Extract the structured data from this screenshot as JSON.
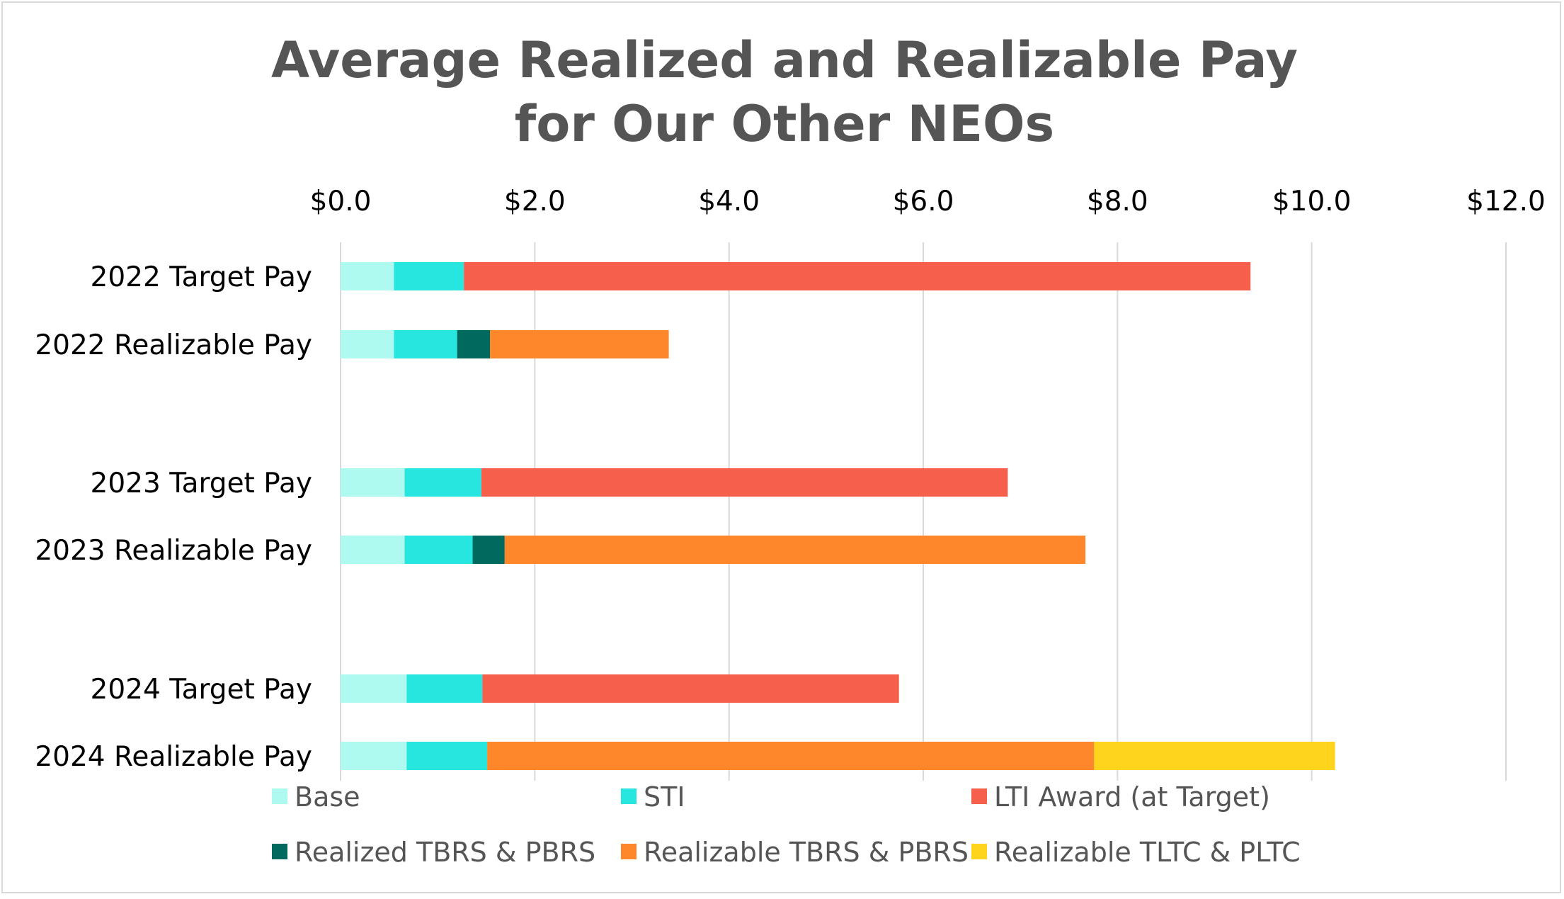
{
  "chart_data": {
    "type": "bar",
    "orientation": "horizontal",
    "stacked": true,
    "title_lines": [
      "Average Realized and Realizable Pay",
      "for Our Other NEOs"
    ],
    "xlabel": "",
    "ylabel": "",
    "xlim": [
      0,
      12
    ],
    "x_ticks": [
      0,
      2,
      4,
      6,
      8,
      10,
      12
    ],
    "x_tick_labels": [
      "$0.0",
      "$2.0",
      "$4.0",
      "$6.0",
      "$8.0",
      "$10.0",
      "$12.0"
    ],
    "x_axis_position": "top",
    "grid": true,
    "legend_position": "bottom",
    "categories": [
      "2022 Target Pay",
      "2022 Realizable Pay",
      "2023 Target Pay",
      "2023 Realizable Pay",
      "2024 Target Pay",
      "2024 Realizable Pay"
    ],
    "series": [
      {
        "name": "Base",
        "color": "#aef9f0",
        "values": [
          0.55,
          0.55,
          0.66,
          0.66,
          0.68,
          0.68
        ]
      },
      {
        "name": "STI",
        "color": "#27e6e0",
        "values": [
          0.72,
          0.65,
          0.79,
          0.7,
          0.78,
          0.83
        ]
      },
      {
        "name": "LTI Award (at Target)",
        "color": "#f65f4b",
        "values": [
          8.1,
          0,
          5.42,
          0,
          4.29,
          0
        ]
      },
      {
        "name": "Realized TBRS & PBRS",
        "color": "#02695f",
        "values": [
          0,
          0.34,
          0,
          0.33,
          0,
          0
        ]
      },
      {
        "name": "Realizable TBRS & PBRS",
        "color": "#fd872a",
        "values": [
          0,
          1.84,
          0,
          5.98,
          0,
          6.25
        ]
      },
      {
        "name": "Realizable TLTC & PLTC",
        "color": "#fed41c",
        "values": [
          0,
          0,
          0,
          0,
          0,
          2.48
        ]
      }
    ]
  }
}
